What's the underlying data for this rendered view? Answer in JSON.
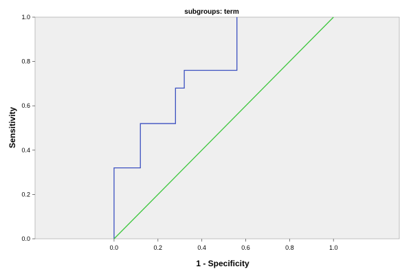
{
  "chart_data": {
    "type": "line",
    "title": "subgroups: term",
    "xlabel": "1 - Specificity",
    "ylabel": "Sensitivity",
    "xlim": [
      -0.36,
      1.3
    ],
    "ylim": [
      0,
      1
    ],
    "x_ticks": [
      {
        "value": 0.0,
        "label": "0.0"
      },
      {
        "value": 0.2,
        "label": "0.2"
      },
      {
        "value": 0.4,
        "label": "0.4"
      },
      {
        "value": 0.6,
        "label": "0.6"
      },
      {
        "value": 0.8,
        "label": "0.8"
      },
      {
        "value": 1.0,
        "label": "1.0"
      }
    ],
    "y_ticks": [
      {
        "value": 0.0,
        "label": "0.0"
      },
      {
        "value": 0.2,
        "label": "0.2"
      },
      {
        "value": 0.4,
        "label": "0.4"
      },
      {
        "value": 0.6,
        "label": "0.6"
      },
      {
        "value": 0.8,
        "label": "0.8"
      },
      {
        "value": 1.0,
        "label": "1.0"
      }
    ],
    "grid": false,
    "colors": {
      "plot_background": "#efefef",
      "roc_curve": "#3a4fc0",
      "reference_line": "#3cc63c"
    },
    "series": [
      {
        "x": [
          0.0,
          0.0,
          0.12,
          0.12,
          0.28,
          0.28,
          0.32,
          0.32,
          0.56,
          0.56
        ],
        "y": [
          0.0,
          0.32,
          0.32,
          0.52,
          0.52,
          0.68,
          0.68,
          0.76,
          0.76,
          1.0
        ]
      },
      {
        "x": [
          0.0,
          1.0
        ],
        "y": [
          0.0,
          1.0
        ]
      }
    ]
  }
}
